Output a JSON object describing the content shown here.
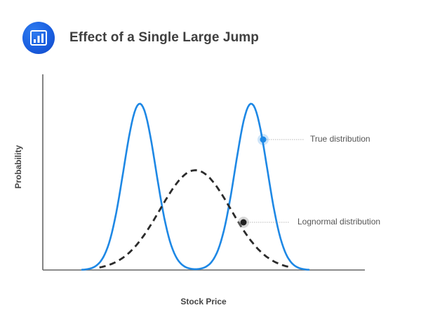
{
  "header": {
    "title": "Effect of a Single Large Jump",
    "icon": "bar-chart-icon"
  },
  "colors": {
    "badge": "#1a5fe0",
    "true_distribution": "#1e88e5",
    "lognormal_distribution": "#2b2b2b",
    "axis": "#666666",
    "title_text": "#3f3f3f"
  },
  "legend": {
    "true_label": "True distribution",
    "lognormal_label": "Lognormal distribution"
  },
  "chart_data": {
    "type": "line",
    "title": "Effect of a Single Large Jump",
    "xlabel": "Stock Price",
    "ylabel": "Probability",
    "grid": false,
    "ticks": "none",
    "legend_position": "annotations right of curves",
    "x_range": [
      0,
      100
    ],
    "y_range": [
      0,
      1
    ],
    "series": [
      {
        "name": "True distribution",
        "style": "solid",
        "color": "#1e88e5",
        "shape": "bimodal",
        "x_start": 12.2,
        "x_end": 82.6,
        "peaks": [
          {
            "x": 30.1,
            "y": 0.85
          },
          {
            "x": 64.7,
            "y": 0.85
          }
        ],
        "trough": {
          "x": 47.4,
          "y": 0.14
        },
        "sigma": 5.0
      },
      {
        "name": "Lognormal distribution",
        "style": "dashed",
        "color": "#2b2b2b",
        "shape": "unimodal",
        "x_start": 17.6,
        "x_end": 77.4,
        "peaks": [
          {
            "x": 47.4,
            "y": 0.51
          }
        ],
        "sigma": 11.0
      }
    ],
    "annotations": [
      {
        "series": "True distribution",
        "marker_at": {
          "x": 68.5,
          "y": 0.67
        },
        "label": "True distribution"
      },
      {
        "series": "Lognormal distribution",
        "marker_at": {
          "x": 62.0,
          "y": 0.24
        },
        "label": "Lognormal distribution"
      }
    ]
  }
}
